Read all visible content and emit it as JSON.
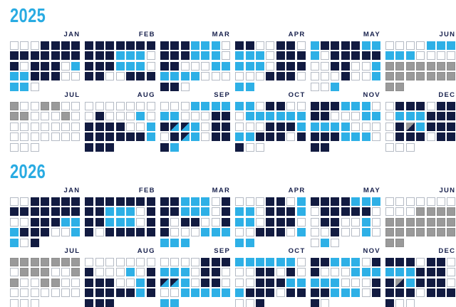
{
  "colors": {
    "accent_cyan": "#29ABE2",
    "navy": "#121b41",
    "cyan": "#2eb0e6",
    "gray": "#9a9a9a",
    "empty_border": "#b5bbc5"
  },
  "chart_data": {
    "type": "heatmap",
    "subtype": "calendar-year-day-grid",
    "layout": "each month = days 1..N wrapped 7 per row",
    "cell_categories": {
      "w": "empty (white, outlined)",
      "n": "navy filled",
      "c": "cyan filled",
      "g": "gray filled",
      "nc": "diagonal split: navy top-left / cyan bottom-right",
      "gn": "diagonal split: gray top-left / navy bottom-right"
    },
    "years": [
      {
        "label": "2025",
        "months": [
          {
            "name": "JAN",
            "days": "w w w n n n n n n n n n n n n w n n n w c c c n n n w w c c w"
          },
          {
            "name": "FEB",
            "days": "n n n n n n n n n n c c c w n n n c c c w n n w w n n n"
          },
          {
            "name": "MAR",
            "days": "n n n c c c w n n n c c c w n n w w w c c c c c c w w w n n w"
          },
          {
            "name": "APR",
            "days": "n n w w n n w c c c w n n n c c c w n n n w w w n n n w c c"
          },
          {
            "name": "MAY",
            "days": "c n n n n c c c w n n n n n w w n n w w c w w w n w w c w w c"
          },
          {
            "name": "JUN",
            "days": "w w w w c c c c c c w w w w g g g g g g g g g g g g g g g g"
          },
          {
            "name": "JUL",
            "days": "g w w g g w w g g w w w g w w w w w w w w w w w w w w w w w w"
          },
          {
            "name": "AUG",
            "days": "w w w w w w w w n w w w c w n n n n w w c n n n n n n c n n n"
          },
          {
            "name": "SEP",
            "days": "w w w c c c c c c w w w n n n nc nc c w n n w n nc c w n n n c"
          },
          {
            "name": "OCT",
            "days": "c c w n n w w w c c c c c c w w w n n n c c c n n n w n n w w"
          },
          {
            "name": "NOV",
            "days": "n n n c c c w n n w w w c c c c c c w w w n n n c c c w n n"
          },
          {
            "name": "DEC",
            "days": "w n n n w n n w c c c n n n w n gn c n n n w n n n w n n w w w"
          }
        ]
      },
      {
        "label": "2026",
        "months": [
          {
            "name": "JAN",
            "days": "w w n n n n n n n n n n n n w w n n n c c c n n n w w c c w n"
          },
          {
            "name": "FEB",
            "days": "n n n n n n n n n c c c w n n n c c c w n n w n n n n n"
          },
          {
            "name": "MAR",
            "days": "n n c c c w n n n c c c w n n w n n w w n n w w w c c c c c c"
          },
          {
            "name": "APR",
            "days": "w w w n n w c c c w n n n c c c w n n n w w w n n n w c c c"
          },
          {
            "name": "MAY",
            "days": "n n n n c c c w n n n n n w w n n w w c w w w n w w c w w c w"
          },
          {
            "name": "JUN",
            "days": "w w w w w w w w w w g g g g g g g g g g g g g g g g g g g g"
          },
          {
            "name": "JUL",
            "days": "g g g g g g g w g g g w w g g w w g g w w w w w w w w w w w w"
          },
          {
            "name": "AUG",
            "days": "w w w w w w w n w w w c w n n n n w w c n n n n n n c n n n n"
          },
          {
            "name": "SEP",
            "days": "w w w w n n n c c c w n n w nc nc c w n n w w w c c c c c c c"
          },
          {
            "name": "OCT",
            "days": "c c c c c c w w w n n w n w w w n n n c c c n n n w n n w w n"
          },
          {
            "name": "NOV",
            "days": "n n c c c w n n w w w c c c c c c w w w n n n c c c w n n w"
          },
          {
            "name": "DEC",
            "days": "n n n w n n w c c c n n n w n gn c n n n w n n n w n n n n w w"
          }
        ]
      }
    ]
  }
}
